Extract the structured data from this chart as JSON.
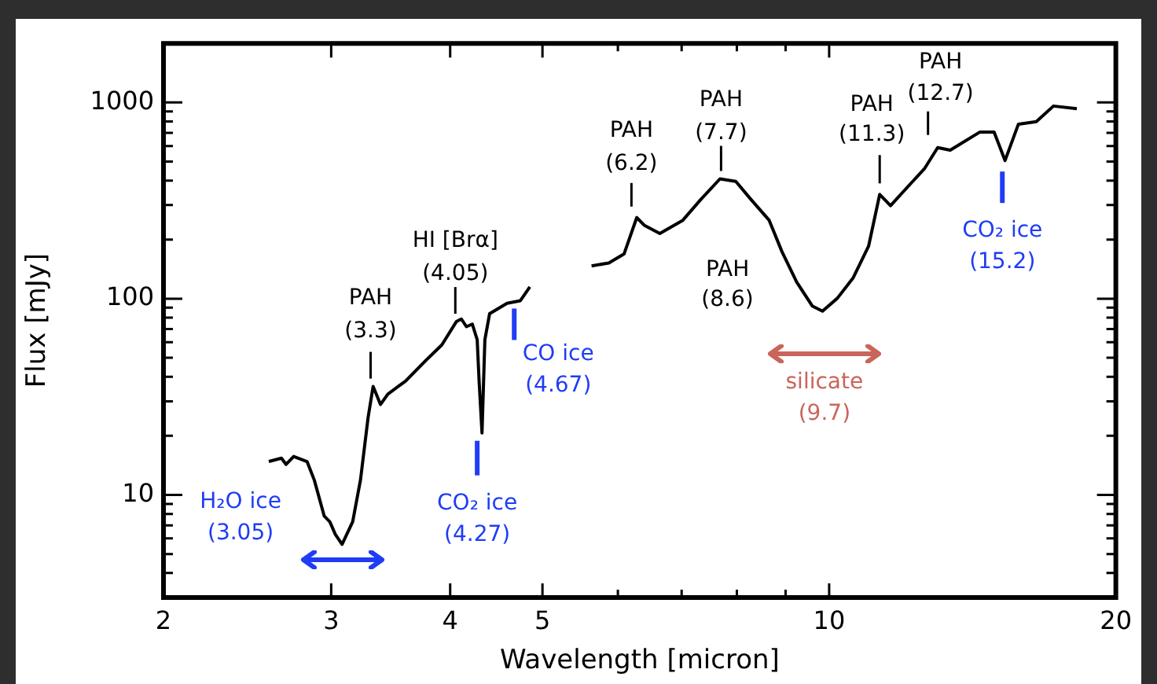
{
  "chart_data": {
    "type": "line",
    "xlabel": "Wavelength [micron]",
    "ylabel": "Flux [mJy]",
    "log": "xy",
    "marker": "none",
    "line_style": "solid",
    "xlim": [
      2,
      20
    ],
    "ylim": [
      3,
      2000
    ],
    "xticks": [
      2,
      3,
      4,
      5,
      {
        "value": 6,
        "label": null
      },
      {
        "value": 7,
        "label": null
      },
      {
        "value": 8,
        "label": null
      },
      {
        "value": 9,
        "label": null
      },
      10,
      20
    ],
    "yticks": [
      {
        "value": 3,
        "label": null
      },
      {
        "value": 4,
        "label": null
      },
      {
        "value": 5,
        "label": null
      },
      {
        "value": 6,
        "label": null
      },
      {
        "value": 7,
        "label": null
      },
      {
        "value": 8,
        "label": null
      },
      {
        "value": 9,
        "label": null
      },
      10,
      {
        "value": 20,
        "label": null
      },
      {
        "value": 30,
        "label": null
      },
      {
        "value": 40,
        "label": null
      },
      {
        "value": 50,
        "label": null
      },
      {
        "value": 60,
        "label": null
      },
      {
        "value": 70,
        "label": null
      },
      {
        "value": 80,
        "label": null
      },
      {
        "value": 90,
        "label": null
      },
      100,
      {
        "value": 200,
        "label": null
      },
      {
        "value": 300,
        "label": null
      },
      {
        "value": 400,
        "label": null
      },
      {
        "value": 500,
        "label": null
      },
      {
        "value": 600,
        "label": null
      },
      {
        "value": 700,
        "label": null
      },
      {
        "value": 800,
        "label": null
      },
      {
        "value": 900,
        "label": null
      },
      1000,
      {
        "value": 2000,
        "label": null
      }
    ],
    "series": [
      {
        "color": "#000000",
        "x": [
          2.58,
          2.66,
          2.69,
          2.74,
          2.83,
          2.88,
          2.95,
          2.99,
          3.03,
          3.08,
          3.16,
          3.22,
          3.28,
          3.32,
          3.38,
          3.44,
          3.59,
          3.77,
          3.92,
          4.06,
          4.11,
          4.16,
          4.22,
          4.27,
          4.29,
          4.32,
          4.35,
          4.4,
          4.59,
          4.74,
          4.85
        ],
        "values": [
          14.8,
          15.4,
          14.3,
          15.7,
          14.8,
          11.9,
          7.8,
          7.3,
          6.3,
          5.6,
          7.3,
          11.9,
          24.8,
          35.7,
          28.9,
          32.6,
          38.0,
          48.4,
          58.1,
          76.4,
          78.8,
          72.0,
          74.2,
          61.8,
          38.0,
          20.7,
          61.8,
          83.8,
          94.7,
          97.7,
          115
        ]
      },
      {
        "color": "#000000",
        "x": [
          5.63,
          5.87,
          6.09,
          6.28,
          6.4,
          6.64,
          7.02,
          7.33,
          7.68,
          7.98,
          8.28,
          8.65,
          8.92,
          9.25,
          9.6,
          9.84,
          10.2,
          10.6,
          11.0,
          11.3,
          11.6,
          12.1,
          12.6,
          13.0,
          13.4,
          14.4,
          14.9,
          15.3,
          15.8,
          16.5,
          17.2,
          18.2
        ],
        "values": [
          147,
          152,
          169,
          259,
          236,
          215,
          251,
          320,
          408,
          396,
          320,
          251,
          174,
          121,
          91.8,
          86.4,
          100.5,
          128,
          185,
          340,
          298,
          373,
          462,
          589,
          571,
          707,
          707,
          506,
          774,
          798,
          959,
          929
        ]
      }
    ],
    "annotations": [
      {
        "text": "H₂O ice\n(3.05)",
        "x": 3.05,
        "y": 5.6
      },
      {
        "text": "PAH\n(3.3)",
        "x": 3.3,
        "y": 35.7
      },
      {
        "text": "HI [Brα]\n(4.05)",
        "x": 4.05,
        "y": 76.4
      },
      {
        "text": "CO₂ ice\n(4.27)",
        "x": 4.27,
        "y": 20.7
      },
      {
        "text": "CO ice\n(4.67)",
        "x": 4.67,
        "y": 97.7
      },
      {
        "text": "PAH\n(6.2)",
        "x": 6.2,
        "y": 259
      },
      {
        "text": "PAH\n(7.7)",
        "x": 7.7,
        "y": 408
      },
      {
        "text": "PAH\n(8.6)",
        "x": 8.6,
        "y": 251
      },
      {
        "text": "silicate\n(9.7)",
        "x": 9.7,
        "y": 91.8
      },
      {
        "text": "PAH\n(11.3)",
        "x": 11.3,
        "y": 340
      },
      {
        "text": "PAH\n(12.7)",
        "x": 12.7,
        "y": 589
      },
      {
        "text": "CO₂ ice\n(15.2)",
        "x": 15.2,
        "y": 506
      }
    ]
  }
}
